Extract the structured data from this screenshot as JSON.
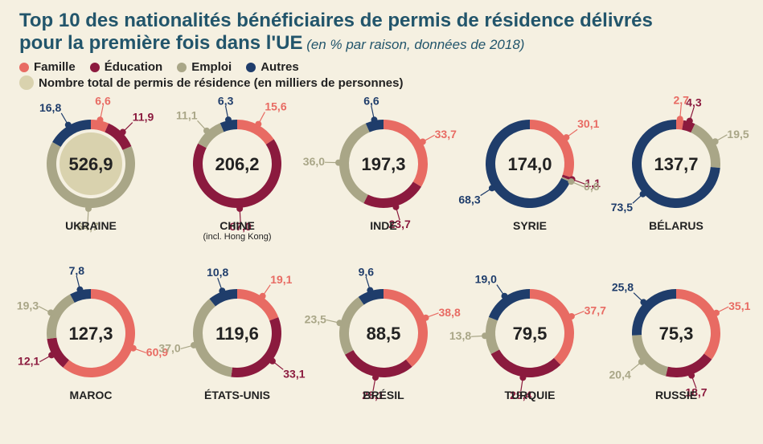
{
  "title_line1": "Top 10 des nationalités bénéficiaires de permis de résidence délivrés",
  "title_line2": "pour la première fois dans l'UE",
  "subtitle": " (en % par raison, données de 2018)",
  "legend": {
    "cat_famille": "Famille",
    "cat_education": "Éducation",
    "cat_emploi": "Emploi",
    "cat_autres": "Autres",
    "total_label": "Nombre total de permis de résidence (en milliers de personnes)"
  },
  "colors": {
    "famille": "#e86b63",
    "education": "#8b1a3e",
    "emploi": "#a9a687",
    "autres": "#1f3d6b",
    "total_fill": "#d9d2ae",
    "bg": "#f5f0e1",
    "text": "#222222",
    "title": "#22556b"
  },
  "chart_style": {
    "donut_outer_r": 55,
    "donut_inner_r": 43,
    "pointer_dot_r": 4,
    "center_fontsize": 22,
    "seglabel_fontsize": 14,
    "country_fontsize": 14
  },
  "order": [
    "famille",
    "education",
    "emploi",
    "autres"
  ],
  "countries": [
    {
      "name": "UKRAINE",
      "total": "526,9",
      "segs": {
        "famille": 6.6,
        "education": 11.9,
        "emploi": 64.7,
        "autres": 16.8
      },
      "big_inner_circle": true,
      "labels": {
        "famille": "6,6",
        "education": "11,9",
        "emploi": "64,7",
        "autres": "16,8"
      }
    },
    {
      "name": "CHINE",
      "sub": "(incl. Hong Kong)",
      "total": "206,2",
      "segs": {
        "famille": 15.6,
        "education": 67.0,
        "emploi": 11.1,
        "autres": 6.3
      },
      "labels": {
        "famille": "15,6",
        "education": "67,0",
        "emploi": "11,1",
        "autres": "6,3"
      }
    },
    {
      "name": "INDE",
      "total": "197,3",
      "segs": {
        "famille": 33.7,
        "education": 23.7,
        "emploi": 36.0,
        "autres": 6.6
      },
      "labels": {
        "famille": "33,7",
        "education": "23,7",
        "emploi": "36,0",
        "autres": "6,6"
      }
    },
    {
      "name": "SYRIE",
      "total": "174,0",
      "segs": {
        "famille": 30.1,
        "education": 1.1,
        "emploi": 0.6,
        "autres": 68.3
      },
      "labels": {
        "famille": "30,1",
        "education": "1,1",
        "emploi": "0,6",
        "autres": "68,3"
      }
    },
    {
      "name": "BÉLARUS",
      "total": "137,7",
      "segs": {
        "famille": 2.7,
        "education": 4.3,
        "emploi": 19.5,
        "autres": 73.5
      },
      "labels": {
        "famille": "2,7",
        "education": "4,3",
        "emploi": "19,5",
        "autres": "73,5"
      }
    },
    {
      "name": "MAROC",
      "total": "127,3",
      "segs": {
        "famille": 60.9,
        "education": 12.1,
        "emploi": 19.3,
        "autres": 7.8
      },
      "labels": {
        "famille": "60,9",
        "education": "12,1",
        "emploi": "19,3",
        "autres": "7,8"
      }
    },
    {
      "name": "ÉTATS-UNIS",
      "total": "119,6",
      "segs": {
        "famille": 19.1,
        "education": 33.1,
        "emploi": 37.0,
        "autres": 10.8
      },
      "labels": {
        "famille": "19,1",
        "education": "33,1",
        "emploi": "37,0",
        "autres": "10,8"
      }
    },
    {
      "name": "BRÉSIL",
      "total": "88,5",
      "segs": {
        "famille": 38.8,
        "education": 28.1,
        "emploi": 23.5,
        "autres": 9.6
      },
      "labels": {
        "famille": "38,8",
        "education": "28,1",
        "emploi": "23,5",
        "autres": "9,6"
      }
    },
    {
      "name": "TURQUIE",
      "total": "79,5",
      "segs": {
        "famille": 37.7,
        "education": 29.4,
        "emploi": 13.8,
        "autres": 19.0
      },
      "labels": {
        "famille": "37,7",
        "education": "29,4",
        "emploi": "13,8",
        "autres": "19,0"
      }
    },
    {
      "name": "RUSSIE",
      "total": "75,3",
      "segs": {
        "famille": 35.1,
        "education": 18.7,
        "emploi": 20.4,
        "autres": 25.8
      },
      "labels": {
        "famille": "35,1",
        "education": "18,7",
        "emploi": "20,4",
        "autres": "25,8"
      }
    }
  ]
}
